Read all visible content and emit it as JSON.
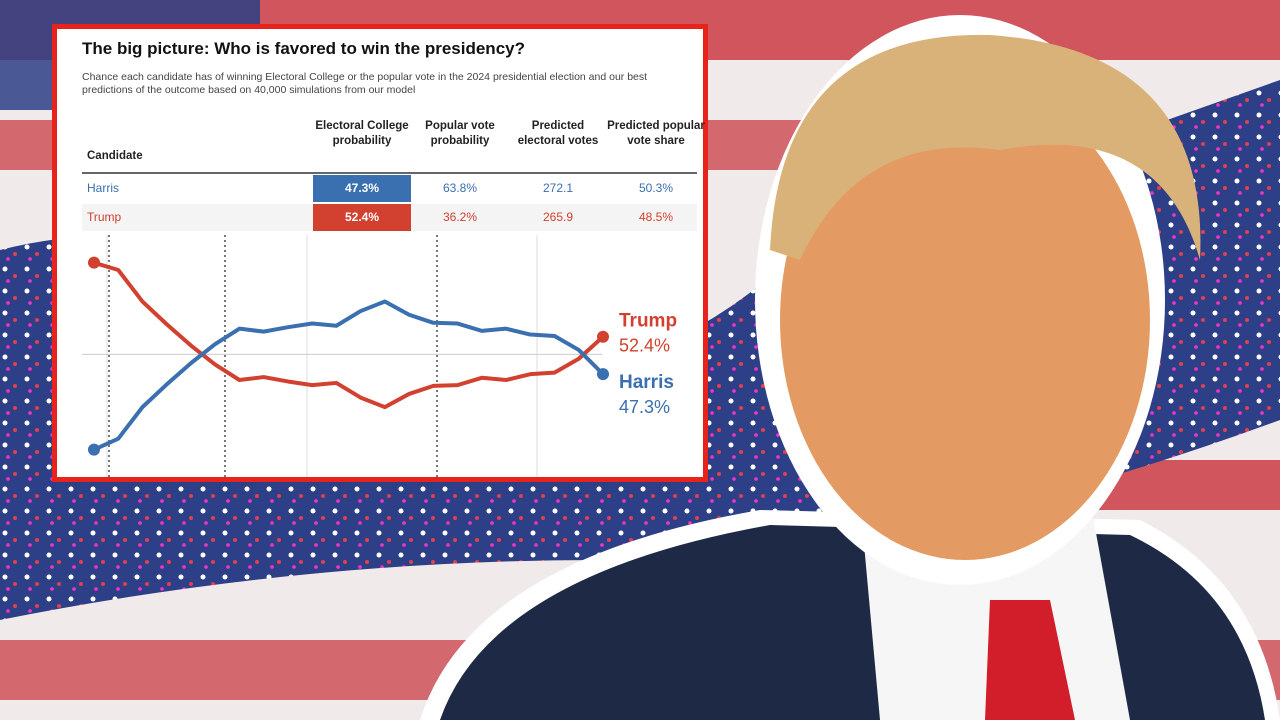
{
  "header": {
    "title": "The big picture: Who is favored to win the presidency?",
    "subtitle": "Chance each candidate has of winning Electoral College or the popular vote in the 2024 presidential election and our best predictions of the outcome based on 40,000 simulations from our model"
  },
  "table": {
    "columns": [
      "Candidate",
      "Electoral College probability",
      "Popular vote probability",
      "Predicted electoral votes",
      "Predicted popular vote share"
    ],
    "rows": [
      [
        "Harris",
        "47.3%",
        "63.8%",
        "272.1",
        "50.3%"
      ],
      [
        "Trump",
        "52.4%",
        "36.2%",
        "265.9",
        "48.5%"
      ]
    ]
  },
  "chart_data": {
    "type": "line",
    "categories": [
      null,
      null,
      null,
      null,
      null,
      null,
      null,
      null,
      null,
      null,
      null,
      null,
      null,
      null,
      null,
      null,
      null,
      null,
      null,
      null,
      null,
      null
    ],
    "ylim": [
      33,
      66
    ],
    "hline": 50,
    "series": [
      {
        "name": "Trump",
        "color": "#d2412f",
        "values": [
          62.5,
          61.5,
          57.2,
          54.1,
          51.2,
          48.6,
          46.5,
          46.9,
          46.3,
          45.8,
          46.1,
          44.1,
          42.8,
          44.6,
          45.7,
          45.8,
          46.8,
          46.5,
          47.3,
          47.5,
          49.4,
          52.4
        ],
        "value_labels": [
          null,
          null,
          null,
          null,
          null,
          null,
          null,
          null,
          null,
          null,
          null,
          null,
          null,
          null,
          null,
          null,
          null,
          null,
          null,
          null,
          null,
          "52.4%"
        ]
      },
      {
        "name": "Harris",
        "color": "#3a6fb0",
        "values": [
          37.0,
          38.5,
          42.8,
          45.9,
          48.8,
          51.4,
          53.5,
          53.1,
          53.7,
          54.2,
          53.9,
          55.9,
          57.2,
          55.4,
          54.3,
          54.2,
          53.2,
          53.5,
          52.7,
          52.5,
          50.6,
          47.3
        ],
        "value_labels": [
          null,
          null,
          null,
          null,
          null,
          null,
          null,
          null,
          null,
          null,
          null,
          null,
          null,
          null,
          null,
          null,
          null,
          null,
          null,
          null,
          null,
          "47.3%"
        ]
      }
    ]
  }
}
